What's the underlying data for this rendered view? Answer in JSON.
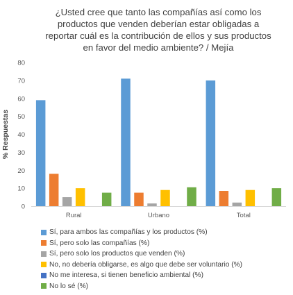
{
  "chart_data": {
    "type": "bar",
    "title_lines": [
      "¿Usted cree que tanto las compañías así como los",
      "productos que venden deberían estar obligadas a",
      "reportar cuál es la contribución de ellos y sus productos",
      "en favor del medio ambiente? / Mejía"
    ],
    "ylabel": "% Respuestas",
    "xlabel": "",
    "ylim": [
      0,
      80
    ],
    "yticks": [
      0,
      10,
      20,
      30,
      40,
      50,
      60,
      70,
      80
    ],
    "grid": false,
    "legend_position": "bottom",
    "categories": [
      "Rural",
      "Urbano",
      "Total"
    ],
    "series": [
      {
        "name": "Sí, para ambos las compañías y los productos (%)",
        "color": "#5B9BD5",
        "values": [
          59,
          71,
          70
        ]
      },
      {
        "name": "Sí, pero solo las compañías (%)",
        "color": "#ED7D31",
        "values": [
          18,
          7.5,
          8.5
        ]
      },
      {
        "name": "Sí, pero solo los productos que venden (%)",
        "color": "#A5A5A5",
        "values": [
          5,
          1.5,
          2
        ]
      },
      {
        "name": "No, no debería obligarse, es algo que debe ser voluntario (%)",
        "color": "#FFC000",
        "values": [
          10,
          9,
          9
        ]
      },
      {
        "name": "No me interesa, si tienen beneficio ambiental (%)",
        "color": "#4472C4",
        "values": [
          0,
          0,
          0
        ]
      },
      {
        "name": "No lo sé (%)",
        "color": "#70AD47",
        "values": [
          7.5,
          10.5,
          10
        ]
      }
    ]
  }
}
